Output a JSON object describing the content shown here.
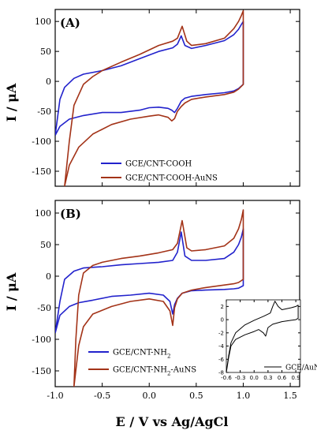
{
  "figure": {
    "xlabel": "E / V vs Ag/AgCl",
    "ylabel": "I / μA",
    "colors": {
      "blue": "#2222cc",
      "red": "#a33318",
      "axis": "#000000"
    }
  },
  "chart_data": [
    {
      "type": "line",
      "panel_label": "(A)",
      "xlim": [
        -1.0,
        1.6
      ],
      "ylim": [
        -175,
        120
      ],
      "xticks": [
        -1.0,
        -0.5,
        0.0,
        0.5,
        1.0,
        1.5
      ],
      "xtick_labels": [
        "",
        "",
        "",
        "",
        "",
        ""
      ],
      "yticks": [
        -150,
        -100,
        -50,
        0,
        50,
        100
      ],
      "ytick_labels": [
        "-150",
        "-100",
        "-50",
        "0",
        "50",
        "100"
      ],
      "legend_position": "bottom-right",
      "series": [
        {
          "name": "GCE/CNT-COOH",
          "color": "#2222cc",
          "legend_parts": [
            "GCE/CNT-COOH"
          ],
          "x": [
            -1.0,
            -0.95,
            -0.9,
            -0.8,
            -0.7,
            -0.5,
            -0.3,
            -0.1,
            0.1,
            0.25,
            0.3,
            0.34,
            0.38,
            0.45,
            0.6,
            0.8,
            0.9,
            0.95,
            0.98,
            1.0,
            1.0,
            0.95,
            0.9,
            0.8,
            0.6,
            0.45,
            0.38,
            0.34,
            0.3,
            0.27,
            0.24,
            0.2,
            0.1,
            0.0,
            -0.1,
            -0.3,
            -0.5,
            -0.7,
            -0.85,
            -0.95,
            -1.0
          ],
          "y": [
            -90,
            -30,
            -10,
            5,
            12,
            18,
            26,
            38,
            50,
            56,
            62,
            76,
            60,
            55,
            60,
            68,
            78,
            87,
            95,
            100,
            -5,
            -12,
            -16,
            -19,
            -22,
            -25,
            -28,
            -33,
            -45,
            -52,
            -48,
            -45,
            -43,
            -44,
            -48,
            -52,
            -52,
            -57,
            -63,
            -75,
            -90
          ]
        },
        {
          "name": "GCE/CNT-COOH-AuNS",
          "color": "#a33318",
          "legend_parts": [
            "GCE/CNT-COOH-AuNS"
          ],
          "x": [
            -0.9,
            -0.85,
            -0.8,
            -0.7,
            -0.6,
            -0.5,
            -0.3,
            -0.1,
            0.1,
            0.25,
            0.3,
            0.35,
            0.4,
            0.45,
            0.6,
            0.8,
            0.9,
            0.95,
            0.98,
            1.0,
            1.0,
            0.95,
            0.9,
            0.8,
            0.6,
            0.45,
            0.38,
            0.34,
            0.3,
            0.27,
            0.24,
            0.2,
            0.1,
            0.0,
            -0.2,
            -0.4,
            -0.6,
            -0.75,
            -0.85,
            -0.9
          ],
          "y": [
            -175,
            -100,
            -40,
            -5,
            8,
            18,
            32,
            45,
            60,
            67,
            72,
            92,
            67,
            60,
            63,
            72,
            88,
            100,
            110,
            118,
            -5,
            -13,
            -18,
            -22,
            -26,
            -30,
            -36,
            -42,
            -50,
            -62,
            -66,
            -60,
            -56,
            -58,
            -63,
            -72,
            -88,
            -110,
            -140,
            -175
          ]
        }
      ]
    },
    {
      "type": "line",
      "panel_label": "(B)",
      "xlim": [
        -1.0,
        1.6
      ],
      "ylim": [
        -175,
        120
      ],
      "xticks": [
        -1.0,
        -0.5,
        0.0,
        0.5,
        1.0,
        1.5
      ],
      "xtick_labels": [
        "-1.0",
        "-0.5",
        "0.0",
        "0.5",
        "1.0",
        "1.5"
      ],
      "yticks": [
        -150,
        -100,
        -50,
        0,
        50,
        100
      ],
      "ytick_labels": [
        "-150",
        "-100",
        "-50",
        "0",
        "50",
        "100"
      ],
      "legend_position": "bottom-center",
      "series": [
        {
          "name": "GCE/CNT-NH2",
          "color": "#2222cc",
          "legend_parts": [
            "GCE/CNT-NH",
            "2",
            ""
          ],
          "x": [
            -1.0,
            -0.95,
            -0.9,
            -0.8,
            -0.7,
            -0.5,
            -0.3,
            -0.1,
            0.1,
            0.25,
            0.3,
            0.34,
            0.38,
            0.45,
            0.6,
            0.8,
            0.9,
            0.95,
            0.98,
            1.0,
            1.0,
            0.95,
            0.9,
            0.8,
            0.6,
            0.45,
            0.35,
            0.3,
            0.27,
            0.25,
            0.22,
            0.15,
            0.0,
            -0.2,
            -0.4,
            -0.6,
            -0.75,
            -0.85,
            -0.95,
            -1.0
          ],
          "y": [
            -90,
            -40,
            -5,
            8,
            13,
            15,
            18,
            20,
            22,
            25,
            38,
            70,
            32,
            25,
            25,
            28,
            38,
            50,
            62,
            75,
            -15,
            -19,
            -20,
            -21,
            -22,
            -23,
            -27,
            -35,
            -45,
            -60,
            -40,
            -30,
            -27,
            -30,
            -32,
            -38,
            -42,
            -48,
            -62,
            -90
          ]
        },
        {
          "name": "GCE/CNT-NH2-AuNS",
          "color": "#a33318",
          "legend_parts": [
            "GCE/CNT-NH",
            "2",
            "-AuNS"
          ],
          "x": [
            -0.8,
            -0.78,
            -0.75,
            -0.7,
            -0.6,
            -0.5,
            -0.3,
            -0.1,
            0.1,
            0.25,
            0.3,
            0.35,
            0.4,
            0.45,
            0.6,
            0.8,
            0.9,
            0.95,
            0.98,
            1.0,
            1.0,
            0.95,
            0.9,
            0.8,
            0.6,
            0.45,
            0.35,
            0.3,
            0.27,
            0.25,
            0.22,
            0.15,
            0.0,
            -0.2,
            -0.4,
            -0.6,
            -0.7,
            -0.75,
            -0.8
          ],
          "y": [
            -175,
            -100,
            -30,
            5,
            17,
            22,
            28,
            32,
            37,
            42,
            52,
            88,
            45,
            40,
            42,
            48,
            60,
            75,
            90,
            105,
            -5,
            -10,
            -12,
            -14,
            -18,
            -22,
            -27,
            -36,
            -50,
            -78,
            -55,
            -40,
            -36,
            -40,
            -48,
            -60,
            -80,
            -110,
            -175
          ]
        }
      ]
    },
    {
      "type": "line",
      "panel_label": "",
      "xlim": [
        -0.6,
        1.0
      ],
      "ylim": [
        -8,
        3
      ],
      "xticks": [
        -0.6,
        -0.3,
        0.0,
        0.3,
        0.6,
        0.9
      ],
      "xtick_labels": [
        "-0.6",
        "-0.3",
        "0.0",
        "0.3",
        "0.6",
        "0.9"
      ],
      "yticks": [
        -8,
        -6,
        -4,
        -2,
        0,
        2
      ],
      "ytick_labels": [
        "-8",
        "-6",
        "-4",
        "-2",
        "0",
        "2"
      ],
      "legend_position": "bottom-right",
      "series": [
        {
          "name": "GCE/AuNS",
          "color": "#000000",
          "legend_parts": [
            "GCE/AuNS"
          ],
          "x": [
            -0.6,
            -0.55,
            -0.5,
            -0.4,
            -0.2,
            0.0,
            0.2,
            0.35,
            0.4,
            0.45,
            0.52,
            0.6,
            0.8,
            0.9,
            0.95,
            0.95,
            0.9,
            0.8,
            0.6,
            0.4,
            0.3,
            0.25,
            0.2,
            0.1,
            0.0,
            -0.2,
            -0.4,
            -0.5,
            -0.55,
            -0.6
          ],
          "y": [
            -8,
            -5.5,
            -3.5,
            -2.0,
            -0.8,
            -0.1,
            0.5,
            1.0,
            2.0,
            2.8,
            2.0,
            1.5,
            1.8,
            2.0,
            2.2,
            0.2,
            0.0,
            -0.1,
            -0.3,
            -0.7,
            -1.2,
            -2.5,
            -2.0,
            -1.5,
            -1.8,
            -2.3,
            -3.0,
            -4.0,
            -5.8,
            -8
          ]
        }
      ]
    }
  ]
}
